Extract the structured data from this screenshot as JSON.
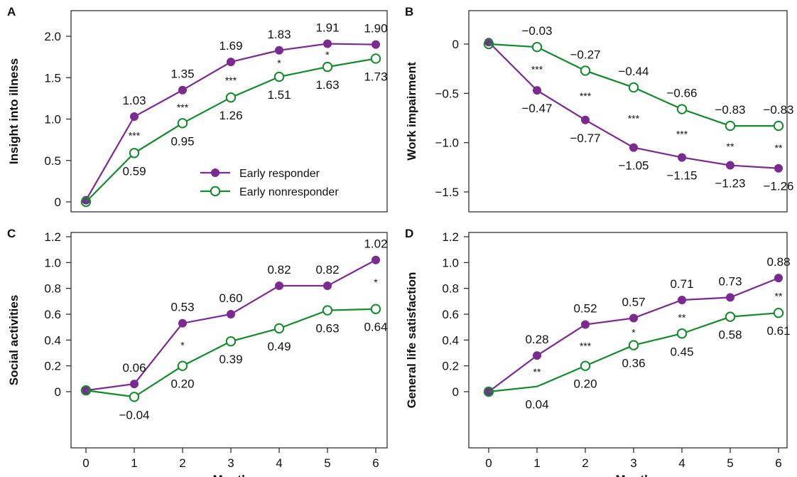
{
  "colors": {
    "responder": "#7a2a91",
    "nonresponder": "#138a2c",
    "axis": "#222222"
  },
  "legend": {
    "responder": "Early responder",
    "nonresponder": "Early nonresponder"
  },
  "chart_data": [
    {
      "panel": "A",
      "type": "line",
      "ylabel": "Insight into illness",
      "xlabel": "",
      "x": [
        0,
        1,
        2,
        3,
        4,
        5,
        6
      ],
      "xticks": [
        "0",
        "1",
        "2",
        "3",
        "4",
        "5",
        "6"
      ],
      "yticks": [
        0,
        0.5,
        1.0,
        1.5,
        2.0
      ],
      "ytick_labels": [
        "0",
        "0.5",
        "1.0",
        "1.5",
        "2.0"
      ],
      "ylim": [
        -0.05,
        2.3
      ],
      "series": [
        {
          "name": "Early responder",
          "values": [
            0.02,
            1.03,
            1.35,
            1.69,
            1.83,
            1.91,
            1.9
          ],
          "labels": [
            "",
            "1.03",
            "1.35",
            "1.69",
            "1.83",
            "1.91",
            "1.90"
          ],
          "label_pos": "above"
        },
        {
          "name": "Early nonresponder",
          "values": [
            0.0,
            0.59,
            0.95,
            1.26,
            1.51,
            1.63,
            1.73
          ],
          "labels": [
            "",
            "0.59",
            "0.95",
            "1.26",
            "1.51",
            "1.63",
            "1.73"
          ],
          "label_pos": "below"
        }
      ],
      "significance": [
        "",
        "***",
        "***",
        "***",
        "*",
        "*",
        ""
      ],
      "legend_position": "bottom-right"
    },
    {
      "panel": "B",
      "type": "line",
      "ylabel": "Work impairment",
      "xlabel": "",
      "x": [
        0,
        1,
        2,
        3,
        4,
        5,
        6
      ],
      "xticks": [
        "0",
        "1",
        "2",
        "3",
        "4",
        "5",
        "6"
      ],
      "yticks": [
        0,
        -0.5,
        -1.0,
        -1.5
      ],
      "ytick_labels": [
        "0",
        "-0.5",
        "-1.0",
        "-1.5"
      ],
      "ylim": [
        -1.65,
        0.2
      ],
      "series": [
        {
          "name": "Early responder",
          "values": [
            0.02,
            -0.47,
            -0.77,
            -1.05,
            -1.15,
            -1.23,
            -1.26
          ],
          "labels": [
            "",
            "−0.47",
            "−0.77",
            "−1.05",
            "−1.15",
            "−1.23",
            "−1.26"
          ],
          "label_pos": "below"
        },
        {
          "name": "Early nonresponder",
          "values": [
            0.0,
            -0.03,
            -0.27,
            -0.44,
            -0.66,
            -0.83,
            -0.83
          ],
          "labels": [
            "",
            "−0.03",
            "−0.27",
            "−0.44",
            "−0.66",
            "−0.83",
            "−0.83"
          ],
          "label_pos": "above"
        }
      ],
      "significance": [
        "",
        "***",
        "***",
        "***",
        "***",
        "**",
        "**"
      ]
    },
    {
      "panel": "C",
      "type": "line",
      "ylabel": "Social activities",
      "xlabel": "Month",
      "x": [
        0,
        1,
        2,
        3,
        4,
        5,
        6
      ],
      "xticks": [
        "0",
        "1",
        "2",
        "3",
        "4",
        "5",
        "6"
      ],
      "yticks": [
        0,
        0.2,
        0.4,
        0.6,
        0.8,
        1.0,
        1.2
      ],
      "ytick_labels": [
        "0",
        "0.2",
        "0.4",
        "0.6",
        "0.8",
        "1.0",
        "1.2"
      ],
      "ylim": [
        -0.28,
        1.27
      ],
      "series": [
        {
          "name": "Early responder",
          "values": [
            0.01,
            0.06,
            0.53,
            0.6,
            0.82,
            0.82,
            1.02
          ],
          "labels": [
            "",
            "0.06",
            "0.53",
            "0.60",
            "0.82",
            "0.82",
            "1.02"
          ],
          "label_pos": "above"
        },
        {
          "name": "Early nonresponder",
          "values": [
            0.01,
            -0.04,
            0.2,
            0.39,
            0.49,
            0.63,
            0.64
          ],
          "labels": [
            "",
            "−0.04",
            "0.20",
            "0.39",
            "0.49",
            "0.63",
            "0.64"
          ],
          "label_pos": "below"
        }
      ],
      "significance": [
        "",
        "",
        "*",
        "",
        "",
        "",
        "*"
      ]
    },
    {
      "panel": "D",
      "type": "line",
      "ylabel": "General life satisfaction",
      "xlabel": "Month",
      "x": [
        0,
        1,
        2,
        3,
        4,
        5,
        6
      ],
      "xticks": [
        "0",
        "1",
        "2",
        "3",
        "4",
        "5",
        "6"
      ],
      "yticks": [
        0,
        0.2,
        0.4,
        0.6,
        0.8,
        1.0,
        1.2
      ],
      "ytick_labels": [
        "0",
        "0.2",
        "0.4",
        "0.6",
        "0.8",
        "1.0",
        "1.2"
      ],
      "ylim": [
        -0.28,
        1.27
      ],
      "series": [
        {
          "name": "Early responder",
          "values": [
            0.0,
            0.28,
            0.52,
            0.57,
            0.71,
            0.73,
            0.88
          ],
          "labels": [
            "",
            "0.28",
            "0.52",
            "0.57",
            "0.71",
            "0.73",
            "0.88"
          ],
          "label_pos": "above"
        },
        {
          "name": "Early nonresponder",
          "values": [
            0.0,
            0.04,
            0.2,
            0.36,
            0.45,
            0.58,
            0.61
          ],
          "labels": [
            "",
            "0.04",
            "0.20",
            "0.36",
            "0.45",
            "0.58",
            "0.61"
          ],
          "label_pos": "below"
        }
      ],
      "significance": [
        "",
        "**",
        "***",
        "*",
        "**",
        "",
        "**"
      ]
    }
  ]
}
